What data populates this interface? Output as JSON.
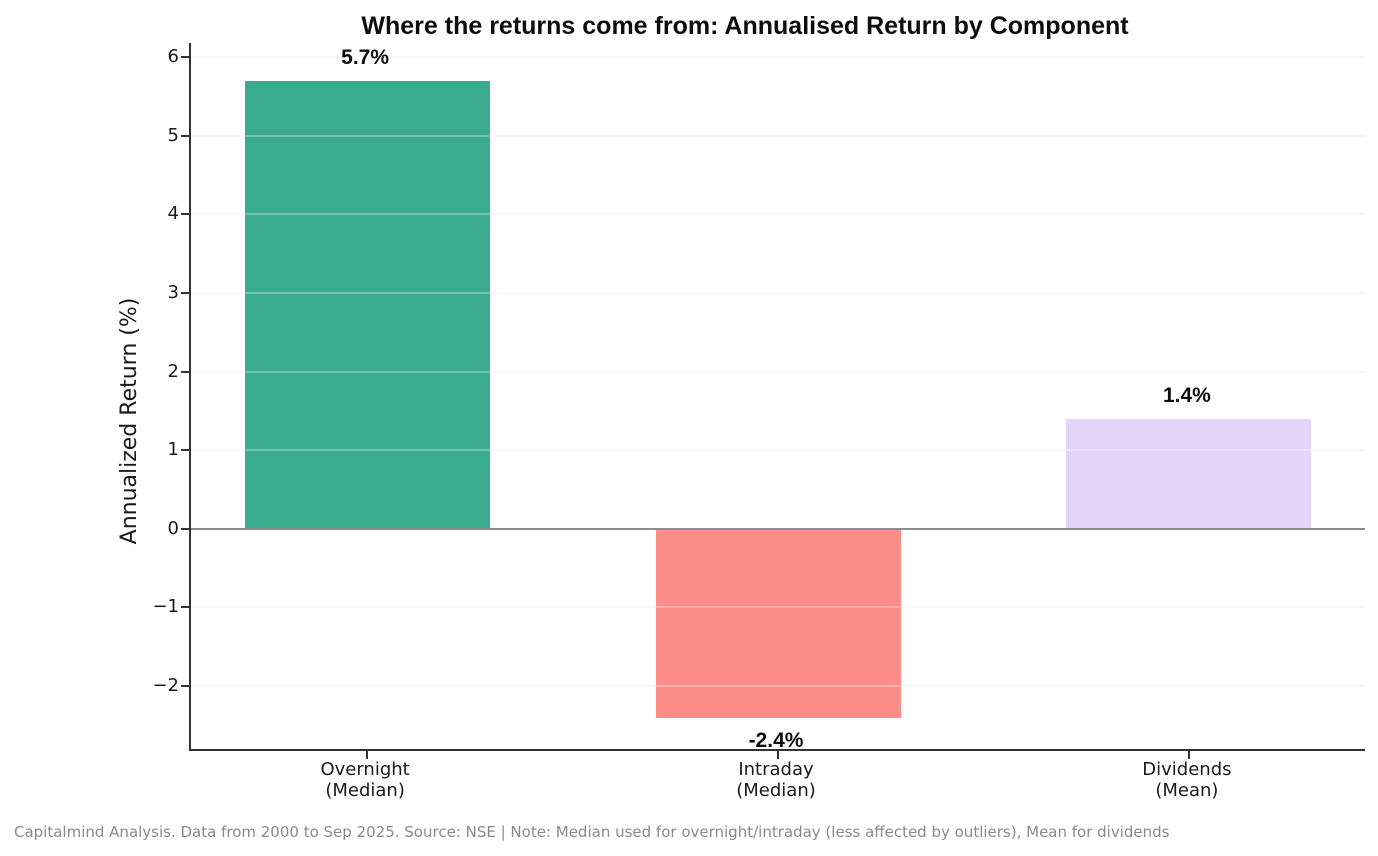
{
  "chart_data": {
    "type": "bar",
    "title": "Where the returns come from: Annualised Return by Component",
    "ylabel": "Annualized Return (%)",
    "categories": [
      "Overnight\n(Median)",
      "Intraday\n(Median)",
      "Dividends\n(Mean)"
    ],
    "values": [
      5.7,
      -2.4,
      1.4
    ],
    "value_labels": [
      "5.7%",
      "-2.4%",
      "1.4%"
    ],
    "bar_colors": [
      "#3bab8e",
      "#fd8d89",
      "#e5d4fa"
    ],
    "yticks": [
      6,
      5,
      4,
      3,
      2,
      1,
      0,
      -1,
      -2
    ],
    "ytick_labels": [
      "6",
      "5",
      "4",
      "3",
      "2",
      "1",
      "0",
      "−1",
      "−2"
    ],
    "ylim": [
      -2.8,
      6.18
    ],
    "grid": "horizontal-light",
    "zero_line": true,
    "legend": null,
    "footnote": "Capitalmind Analysis. Data from 2000 to Sep 2025. Source: NSE | Note: Median used for overnight/intraday (less affected by outliers), Mean for dividends"
  }
}
